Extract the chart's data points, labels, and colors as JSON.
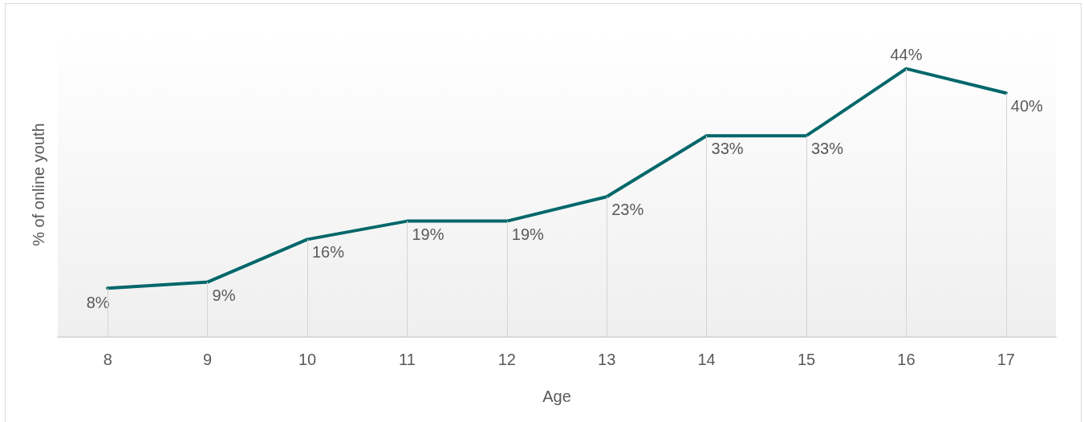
{
  "chart_data": {
    "type": "line",
    "xlabel": "Age",
    "ylabel": "% of online youth",
    "categories": [
      "8",
      "9",
      "10",
      "11",
      "12",
      "13",
      "14",
      "15",
      "16",
      "17"
    ],
    "series": [
      {
        "color": "#00676a",
        "values": [
          8,
          9,
          16,
          19,
          19,
          23,
          33,
          33,
          44,
          40
        ],
        "value_labels": [
          "8%",
          "9%",
          "16%",
          "19%",
          "19%",
          "23%",
          "33%",
          "33%",
          "44%",
          "40%"
        ]
      }
    ],
    "ylim": [
      0,
      50
    ],
    "tick_labels": "x",
    "marker": "none",
    "line_style": "solid"
  }
}
